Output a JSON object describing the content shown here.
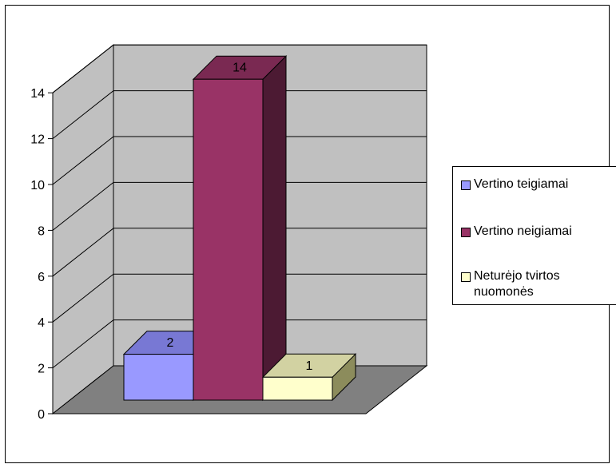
{
  "chart_data": {
    "type": "bar",
    "style": "3d-column",
    "categories": [
      "Vertino teigiamai",
      "Vertino neigiamai",
      "Neturėjo tvirtos nuomonės"
    ],
    "values": [
      2,
      14,
      1
    ],
    "data_labels": [
      "2",
      "14",
      "1"
    ],
    "series": [
      {
        "name": "Vertino teigiamai",
        "value": 2,
        "color": "#9999FF",
        "side_color": "#4E4EA0",
        "top_color": "#7878D4"
      },
      {
        "name": "Vertino neigiamai",
        "value": 14,
        "color": "#993366",
        "side_color": "#4C1A33",
        "top_color": "#7A2952"
      },
      {
        "name": "Neturėjo tvirtos nuomonės",
        "value": 1,
        "color": "#FFFFCC",
        "side_color": "#8C8C5C",
        "top_color": "#D2D2A2"
      }
    ],
    "ylim": [
      0,
      14
    ],
    "y_ticks": [
      "0",
      "2",
      "4",
      "6",
      "8",
      "10",
      "12",
      "14"
    ],
    "grid": true,
    "legend_position": "right",
    "wall_color": "#C0C0C0",
    "floor_color": "#808080",
    "title": "",
    "xlabel": "",
    "ylabel": ""
  }
}
